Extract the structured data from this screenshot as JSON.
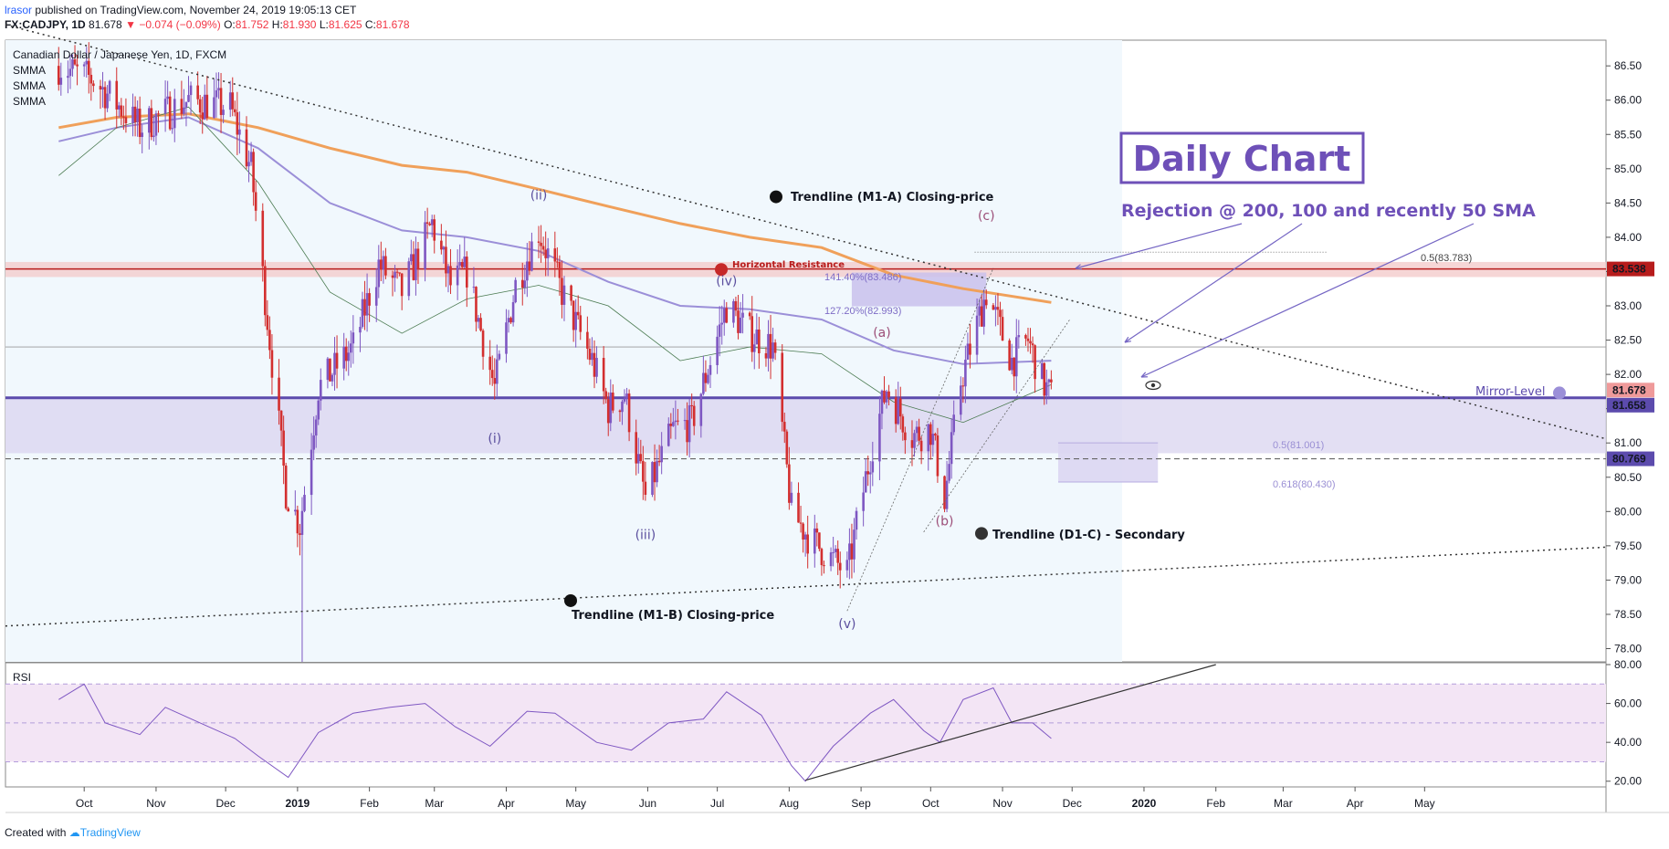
{
  "header": {
    "author": "lrasor",
    "published": "published on TradingView.com, November 24, 2019 19:05:13 CET"
  },
  "symbol_line": {
    "symbol": "FX:CADJPY, 1D",
    "last": "81.678",
    "change": "−0.074 (−0.09%)",
    "o_label": "O:",
    "o": "81.752",
    "h_label": "H:",
    "h": "81.930",
    "l_label": "L:",
    "l": "81.625",
    "c_label": "C:",
    "c": "81.678"
  },
  "legend": {
    "title": "Canadian Dollar / Japanese Yen, 1D, FXCM",
    "ma1": "SMMA",
    "ma2": "SMMA",
    "ma3": "SMMA"
  },
  "footer": {
    "created": "Created with",
    "brand": "TradingView"
  },
  "colors": {
    "up": "#7e57c2",
    "down": "#d32f2f",
    "sma50": "#4a7a50",
    "sma100": "#9b8fd8",
    "sma200": "#f0a05a",
    "resistance": "#b71c1c",
    "mirror": "#5c4bad",
    "rsi_fill": "#f3e5f5",
    "rsi_line": "#7e57c2"
  },
  "annotations": {
    "daily_chart": "Daily Chart",
    "rejection": "Rejection @ 200, 100 and recently 50 SMA",
    "horizontal_resistance": "Horizontal Resistance",
    "trend_m1a": "Trendline (M1-A) Closing-price",
    "trend_m1b": "Trendline (M1-B) Closing-price",
    "trend_d1c": "Trendline (D1-C) - Secondary",
    "mirror_level": "Mirror-Level",
    "fib_1414": "141.40%(83.486)",
    "fib_1272": "127.20%(82.993)",
    "fib_05_top": "0.5(83.783)",
    "fib_05": "0.5(81.001)",
    "fib_0618": "0.618(80.430)",
    "waves": [
      {
        "label": "(i)",
        "date": "2019-03-27",
        "price": 81.0
      },
      {
        "label": "(ii)",
        "date": "2019-04-15",
        "price": 84.55
      },
      {
        "label": "(iii)",
        "date": "2019-05-31",
        "price": 79.6
      },
      {
        "label": "(iv)",
        "date": "2019-07-05",
        "price": 83.3
      },
      {
        "label": "(v)",
        "date": "2019-08-26",
        "price": 78.3
      },
      {
        "label": "(a)",
        "date": "2019-09-10",
        "price": 82.55
      },
      {
        "label": "(b)",
        "date": "2019-10-07",
        "price": 79.8
      },
      {
        "label": "(c)",
        "date": "2019-10-25",
        "price": 84.25
      }
    ]
  },
  "chart_data": {
    "type": "candlestick",
    "title": "Canadian Dollar / Japanese Yen, 1D, FXCM",
    "x_ticks": [
      "Oct",
      "Nov",
      "Dec",
      "2019",
      "Feb",
      "Mar",
      "Apr",
      "May",
      "Jun",
      "Jul",
      "Aug",
      "Sep",
      "Oct",
      "Nov",
      "Dec",
      "2020",
      "Feb",
      "Mar",
      "Apr",
      "May"
    ],
    "y_ticks": [
      "86.50",
      "86.00",
      "85.50",
      "85.00",
      "84.50",
      "84.00",
      "83.50",
      "83.00",
      "82.50",
      "82.00",
      "81.50",
      "81.00",
      "80.50",
      "80.00",
      "79.50",
      "79.00",
      "78.50",
      "78.00"
    ],
    "ylim": [
      77.75,
      86.75
    ],
    "price_labels": {
      "resistance": "83.538",
      "last": "81.678",
      "mirror": "81.658",
      "support": "80.769"
    },
    "levels": {
      "resistance": 83.538,
      "last": 81.678,
      "mirror": 81.658,
      "support": 80.769
    },
    "anchors": [
      {
        "date": "2018-09-20",
        "price": 86.5
      },
      {
        "date": "2018-10-05",
        "price": 86.3
      },
      {
        "date": "2018-10-25",
        "price": 85.6
      },
      {
        "date": "2018-11-15",
        "price": 86.0
      },
      {
        "date": "2018-12-03",
        "price": 85.9
      },
      {
        "date": "2018-12-12",
        "price": 85.0
      },
      {
        "date": "2018-12-20",
        "price": 82.5
      },
      {
        "date": "2018-12-27",
        "price": 80.3
      },
      {
        "date": "2019-01-02",
        "price": 79.8
      },
      {
        "date": "2019-01-10",
        "price": 81.8
      },
      {
        "date": "2019-01-25",
        "price": 82.4
      },
      {
        "date": "2019-02-05",
        "price": 83.6
      },
      {
        "date": "2019-02-15",
        "price": 83.2
      },
      {
        "date": "2019-02-28",
        "price": 84.2
      },
      {
        "date": "2019-03-08",
        "price": 83.3
      },
      {
        "date": "2019-03-15",
        "price": 83.5
      },
      {
        "date": "2019-03-27",
        "price": 81.8
      },
      {
        "date": "2019-04-05",
        "price": 83.3
      },
      {
        "date": "2019-04-15",
        "price": 84.1
      },
      {
        "date": "2019-04-25",
        "price": 83.2
      },
      {
        "date": "2019-05-08",
        "price": 82.2
      },
      {
        "date": "2019-05-15",
        "price": 81.5
      },
      {
        "date": "2019-05-22",
        "price": 81.7
      },
      {
        "date": "2019-05-31",
        "price": 80.2
      },
      {
        "date": "2019-06-12",
        "price": 81.2
      },
      {
        "date": "2019-06-20",
        "price": 81.3
      },
      {
        "date": "2019-07-05",
        "price": 83.0
      },
      {
        "date": "2019-07-15",
        "price": 82.6
      },
      {
        "date": "2019-07-25",
        "price": 82.4
      },
      {
        "date": "2019-08-02",
        "price": 80.0
      },
      {
        "date": "2019-08-10",
        "price": 79.6
      },
      {
        "date": "2019-08-26",
        "price": 79.1
      },
      {
        "date": "2019-09-06",
        "price": 81.0
      },
      {
        "date": "2019-09-12",
        "price": 81.8
      },
      {
        "date": "2019-09-23",
        "price": 81.1
      },
      {
        "date": "2019-10-01",
        "price": 81.2
      },
      {
        "date": "2019-10-07",
        "price": 80.2
      },
      {
        "date": "2019-10-14",
        "price": 81.9
      },
      {
        "date": "2019-10-25",
        "price": 83.2
      },
      {
        "date": "2019-11-05",
        "price": 82.2
      },
      {
        "date": "2019-11-12",
        "price": 82.5
      },
      {
        "date": "2019-11-18",
        "price": 81.9
      },
      {
        "date": "2019-11-22",
        "price": 81.68
      }
    ],
    "sma200": [
      {
        "date": "2018-09-20",
        "price": 85.6
      },
      {
        "date": "2018-10-15",
        "price": 85.75
      },
      {
        "date": "2018-11-15",
        "price": 85.8
      },
      {
        "date": "2018-12-15",
        "price": 85.6
      },
      {
        "date": "2019-01-15",
        "price": 85.3
      },
      {
        "date": "2019-02-15",
        "price": 85.05
      },
      {
        "date": "2019-03-15",
        "price": 84.95
      },
      {
        "date": "2019-04-15",
        "price": 84.7
      },
      {
        "date": "2019-05-15",
        "price": 84.45
      },
      {
        "date": "2019-06-15",
        "price": 84.2
      },
      {
        "date": "2019-07-15",
        "price": 84.0
      },
      {
        "date": "2019-08-15",
        "price": 83.85
      },
      {
        "date": "2019-09-15",
        "price": 83.45
      },
      {
        "date": "2019-10-15",
        "price": 83.25
      },
      {
        "date": "2019-11-22",
        "price": 83.05
      }
    ],
    "sma100": [
      {
        "date": "2018-09-20",
        "price": 85.4
      },
      {
        "date": "2018-10-15",
        "price": 85.6
      },
      {
        "date": "2018-11-15",
        "price": 85.75
      },
      {
        "date": "2018-12-15",
        "price": 85.3
      },
      {
        "date": "2019-01-15",
        "price": 84.5
      },
      {
        "date": "2019-02-15",
        "price": 84.1
      },
      {
        "date": "2019-03-15",
        "price": 84.0
      },
      {
        "date": "2019-04-15",
        "price": 83.8
      },
      {
        "date": "2019-05-15",
        "price": 83.35
      },
      {
        "date": "2019-06-15",
        "price": 83.0
      },
      {
        "date": "2019-07-15",
        "price": 82.95
      },
      {
        "date": "2019-08-15",
        "price": 82.8
      },
      {
        "date": "2019-09-15",
        "price": 82.35
      },
      {
        "date": "2019-10-15",
        "price": 82.15
      },
      {
        "date": "2019-11-22",
        "price": 82.2
      }
    ],
    "sma50": [
      {
        "date": "2018-09-20",
        "price": 84.9
      },
      {
        "date": "2018-10-15",
        "price": 85.6
      },
      {
        "date": "2018-11-15",
        "price": 85.9
      },
      {
        "date": "2018-12-15",
        "price": 84.8
      },
      {
        "date": "2019-01-15",
        "price": 83.2
      },
      {
        "date": "2019-02-15",
        "price": 82.6
      },
      {
        "date": "2019-03-15",
        "price": 83.1
      },
      {
        "date": "2019-04-15",
        "price": 83.3
      },
      {
        "date": "2019-05-15",
        "price": 83.0
      },
      {
        "date": "2019-06-15",
        "price": 82.2
      },
      {
        "date": "2019-07-15",
        "price": 82.4
      },
      {
        "date": "2019-08-15",
        "price": 82.3
      },
      {
        "date": "2019-09-15",
        "price": 81.6
      },
      {
        "date": "2019-10-15",
        "price": 81.3
      },
      {
        "date": "2019-11-22",
        "price": 81.85
      }
    ],
    "rsi": {
      "label": "RSI",
      "y_ticks": [
        "80.00",
        "60.00",
        "40.00",
        "20.00"
      ],
      "ylim": [
        18,
        80
      ],
      "band": [
        30,
        70
      ],
      "series": [
        {
          "date": "2018-09-20",
          "value": 62
        },
        {
          "date": "2018-10-01",
          "value": 70
        },
        {
          "date": "2018-10-10",
          "value": 50
        },
        {
          "date": "2018-10-25",
          "value": 44
        },
        {
          "date": "2018-11-05",
          "value": 58
        },
        {
          "date": "2018-11-20",
          "value": 50
        },
        {
          "date": "2018-12-05",
          "value": 42
        },
        {
          "date": "2018-12-15",
          "value": 33
        },
        {
          "date": "2018-12-28",
          "value": 22
        },
        {
          "date": "2019-01-10",
          "value": 45
        },
        {
          "date": "2019-01-25",
          "value": 55
        },
        {
          "date": "2019-02-10",
          "value": 58
        },
        {
          "date": "2019-02-25",
          "value": 60
        },
        {
          "date": "2019-03-10",
          "value": 48
        },
        {
          "date": "2019-03-25",
          "value": 38
        },
        {
          "date": "2019-04-10",
          "value": 56
        },
        {
          "date": "2019-04-22",
          "value": 55
        },
        {
          "date": "2019-05-10",
          "value": 40
        },
        {
          "date": "2019-05-25",
          "value": 36
        },
        {
          "date": "2019-06-10",
          "value": 50
        },
        {
          "date": "2019-06-25",
          "value": 52
        },
        {
          "date": "2019-07-05",
          "value": 66
        },
        {
          "date": "2019-07-20",
          "value": 54
        },
        {
          "date": "2019-08-02",
          "value": 28
        },
        {
          "date": "2019-08-08",
          "value": 20
        },
        {
          "date": "2019-08-20",
          "value": 38
        },
        {
          "date": "2019-09-05",
          "value": 55
        },
        {
          "date": "2019-09-15",
          "value": 62
        },
        {
          "date": "2019-09-28",
          "value": 46
        },
        {
          "date": "2019-10-05",
          "value": 40
        },
        {
          "date": "2019-10-15",
          "value": 62
        },
        {
          "date": "2019-10-28",
          "value": 68
        },
        {
          "date": "2019-11-05",
          "value": 50
        },
        {
          "date": "2019-11-14",
          "value": 50
        },
        {
          "date": "2019-11-22",
          "value": 42
        }
      ]
    }
  }
}
